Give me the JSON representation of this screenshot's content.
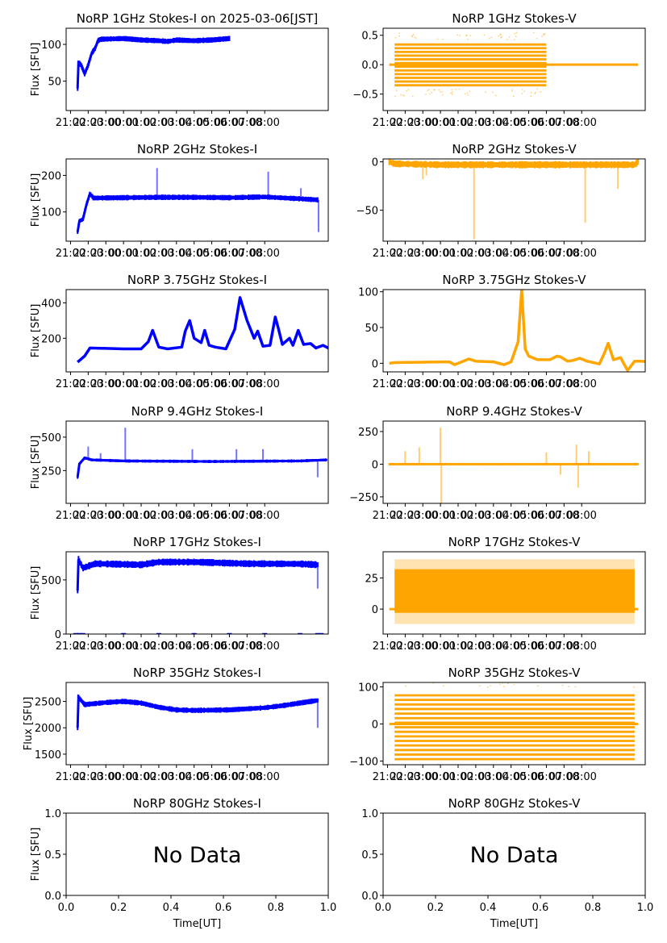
{
  "figure": {
    "x_tick_labels": [
      "21:00",
      "22:00",
      "23:00",
      "00:00",
      "01:00",
      "02:00",
      "03:00",
      "04:00",
      "05:00",
      "06:00",
      "07:00",
      "08:00"
    ],
    "ylabel": "Flux [SFU]",
    "xlabel_empty": "Time[UT]",
    "no_data_text": "No Data",
    "empty_ticks": [
      "0.0",
      "0.2",
      "0.4",
      "0.6",
      "0.8",
      "1.0"
    ],
    "empty_yticks": [
      "0.0",
      "0.5",
      "1.0"
    ],
    "colors": {
      "stokes_i": "#0000ff",
      "stokes_v": "#ffa500"
    }
  },
  "chart_data": [
    {
      "id": "1i",
      "type": "scatter",
      "title": "NoRP 1GHz Stokes-I on 2025-03-06[JST]",
      "ylabel": "Flux [SFU]",
      "ylim": [
        10,
        122
      ],
      "yticks": [
        50,
        100
      ],
      "xlim_hours": [
        -3.25,
        11.6
      ],
      "data_end_hours": 6.0,
      "points": [
        [
          -2.6,
          40
        ],
        [
          -2.55,
          75
        ],
        [
          -2.4,
          72
        ],
        [
          -2.2,
          60
        ],
        [
          -2.0,
          72
        ],
        [
          -1.8,
          88
        ],
        [
          -1.6,
          95
        ],
        [
          -1.45,
          105
        ],
        [
          -1.3,
          107
        ],
        [
          0,
          108
        ],
        [
          1,
          106
        ],
        [
          2,
          105
        ],
        [
          2.5,
          104
        ],
        [
          3,
          106
        ],
        [
          4,
          105
        ],
        [
          5,
          106
        ],
        [
          6,
          108
        ]
      ],
      "noise": 2.5
    },
    {
      "id": "1v",
      "type": "scatter",
      "title": "NoRP 1GHz Stokes-V",
      "ylabel": "",
      "ylim": [
        -0.78,
        0.62
      ],
      "yticks": [
        -0.5,
        0.0,
        0.5
      ],
      "ytick_labels": [
        "−0.5",
        "0.0",
        "0.5"
      ],
      "xlim_hours": [
        -3.25,
        11.6
      ],
      "banded": {
        "start": -2.6,
        "end": 6.0,
        "min": -0.35,
        "max": 0.36,
        "step": 0.063,
        "baseline_start": -2.9,
        "baseline_end": 11.2
      }
    },
    {
      "id": "2i",
      "type": "scatter",
      "title": "NoRP 2GHz Stokes-I",
      "ylabel": "Flux [SFU]",
      "ylim": [
        20,
        245
      ],
      "yticks": [
        100,
        200
      ],
      "xlim_hours": [
        -3.25,
        11.6
      ],
      "points": [
        [
          -2.6,
          45
        ],
        [
          -2.5,
          75
        ],
        [
          -2.3,
          80
        ],
        [
          -2.1,
          120
        ],
        [
          -1.9,
          150
        ],
        [
          -1.7,
          138
        ],
        [
          0,
          139
        ],
        [
          2,
          140
        ],
        [
          4,
          140
        ],
        [
          6,
          139
        ],
        [
          8,
          141
        ],
        [
          10,
          136
        ],
        [
          11,
          133
        ]
      ],
      "noise": 5,
      "spikes": [
        [
          1.9,
          220
        ],
        [
          8.2,
          210
        ],
        [
          10.05,
          165
        ],
        [
          11.05,
          45
        ]
      ]
    },
    {
      "id": "2v",
      "type": "scatter",
      "title": "NoRP 2GHz Stokes-V",
      "ylabel": "",
      "ylim": [
        -82,
        3
      ],
      "yticks": [
        -50,
        0
      ],
      "ytick_labels": [
        "−50",
        "0"
      ],
      "xlim_hours": [
        -3.25,
        11.6
      ],
      "points": [
        [
          -2.9,
          0
        ],
        [
          -2.6,
          -2
        ],
        [
          0,
          -3
        ],
        [
          5,
          -3
        ],
        [
          11,
          -3
        ],
        [
          11.2,
          0
        ]
      ],
      "noise": 2.5,
      "spikes": [
        [
          -1.0,
          -18
        ],
        [
          -0.8,
          -14
        ],
        [
          1.9,
          -80
        ],
        [
          8.2,
          -63
        ],
        [
          10.05,
          -28
        ]
      ]
    },
    {
      "id": "3i",
      "type": "line",
      "title": "NoRP 3.75GHz Stokes-I",
      "ylabel": "Flux [SFU]",
      "ylim": [
        10,
        475
      ],
      "yticks": [
        200,
        400
      ],
      "xlim_hours": [
        -3.25,
        11.6
      ],
      "points": [
        [
          -2.6,
          65
        ],
        [
          -2.2,
          100
        ],
        [
          -1.9,
          145
        ],
        [
          0,
          140
        ],
        [
          1.0,
          140
        ],
        [
          1.4,
          180
        ],
        [
          1.65,
          245
        ],
        [
          2.0,
          150
        ],
        [
          2.5,
          140
        ],
        [
          3.3,
          150
        ],
        [
          3.5,
          240
        ],
        [
          3.75,
          300
        ],
        [
          4.0,
          200
        ],
        [
          4.4,
          175
        ],
        [
          4.6,
          245
        ],
        [
          4.85,
          160
        ],
        [
          5.2,
          150
        ],
        [
          5.8,
          140
        ],
        [
          6.3,
          250
        ],
        [
          6.6,
          430
        ],
        [
          7.0,
          300
        ],
        [
          7.4,
          200
        ],
        [
          7.6,
          240
        ],
        [
          7.9,
          155
        ],
        [
          8.3,
          160
        ],
        [
          8.6,
          320
        ],
        [
          8.75,
          265
        ],
        [
          9.0,
          165
        ],
        [
          9.4,
          200
        ],
        [
          9.6,
          160
        ],
        [
          9.9,
          245
        ],
        [
          10.2,
          165
        ],
        [
          10.6,
          170
        ],
        [
          10.9,
          145
        ],
        [
          11.3,
          160
        ],
        [
          11.6,
          145
        ],
        [
          12.1,
          140
        ]
      ],
      "spikes": [
        [
          12.1,
          290
        ]
      ]
    },
    {
      "id": "3v",
      "type": "line",
      "title": "NoRP 3.75GHz Stokes-V",
      "ylabel": "",
      "ylim": [
        -12,
        103
      ],
      "yticks": [
        0,
        50,
        100
      ],
      "xlim_hours": [
        -3.25,
        11.6
      ],
      "points": [
        [
          -2.9,
          0
        ],
        [
          -2.6,
          1
        ],
        [
          0,
          2
        ],
        [
          0.5,
          2
        ],
        [
          0.8,
          -2
        ],
        [
          1.2,
          2
        ],
        [
          1.6,
          6
        ],
        [
          2.0,
          3
        ],
        [
          3.0,
          2
        ],
        [
          3.6,
          -2
        ],
        [
          4.0,
          2
        ],
        [
          4.4,
          30
        ],
        [
          4.6,
          102
        ],
        [
          4.8,
          20
        ],
        [
          5.0,
          10
        ],
        [
          5.5,
          5
        ],
        [
          6.2,
          5
        ],
        [
          6.6,
          10
        ],
        [
          6.8,
          9
        ],
        [
          7.2,
          3
        ],
        [
          7.5,
          4
        ],
        [
          7.9,
          7
        ],
        [
          8.3,
          3
        ],
        [
          9.0,
          -1
        ],
        [
          9.3,
          15
        ],
        [
          9.5,
          28
        ],
        [
          9.8,
          5
        ],
        [
          10.2,
          8
        ],
        [
          10.6,
          -10
        ],
        [
          11.0,
          3
        ],
        [
          11.3,
          3
        ],
        [
          11.9,
          2
        ],
        [
          12.1,
          0
        ]
      ],
      "spikes": [
        [
          12.1,
          97
        ],
        [
          12.0,
          22
        ]
      ]
    },
    {
      "id": "9i",
      "type": "scatter",
      "title": "NoRP 9.4GHz Stokes-I",
      "ylabel": "Flux [SFU]",
      "ylim": [
        5,
        620
      ],
      "yticks": [
        250,
        500
      ],
      "xlim_hours": [
        -3.25,
        11.6
      ],
      "points": [
        [
          -2.6,
          200
        ],
        [
          -2.5,
          300
        ],
        [
          -2.2,
          345
        ],
        [
          -1.8,
          330
        ],
        [
          0,
          322
        ],
        [
          5,
          318
        ],
        [
          10,
          322
        ],
        [
          11.5,
          330
        ]
      ],
      "noise": 8,
      "spikes": [
        [
          -2.0,
          430
        ],
        [
          0.1,
          570
        ],
        [
          -1.3,
          380
        ],
        [
          3.9,
          410
        ],
        [
          6.4,
          410
        ],
        [
          7.9,
          410
        ],
        [
          11.0,
          200
        ]
      ]
    },
    {
      "id": "9v",
      "type": "scatter",
      "title": "NoRP 9.4GHz Stokes-V",
      "ylabel": "",
      "ylim": [
        -300,
        330
      ],
      "yticks": [
        -250,
        0,
        250
      ],
      "ytick_labels": [
        "−250",
        "0",
        "250"
      ],
      "xlim_hours": [
        -3.25,
        11.6
      ],
      "points": [
        [
          -2.9,
          0
        ],
        [
          11.2,
          0
        ]
      ],
      "noise": 6,
      "spikes": [
        [
          -2.0,
          100
        ],
        [
          -1.2,
          130
        ],
        [
          0.0,
          280
        ],
        [
          0.05,
          -300
        ],
        [
          6.0,
          90
        ],
        [
          6.8,
          -80
        ],
        [
          7.7,
          150
        ],
        [
          7.8,
          -180
        ],
        [
          8.4,
          100
        ]
      ]
    },
    {
      "id": "17i",
      "type": "scatter",
      "title": "NoRP 17GHz Stokes-I",
      "ylabel": "Flux [SFU]",
      "ylim": [
        0,
        760
      ],
      "yticks": [
        0,
        500
      ],
      "xlim_hours": [
        -3.25,
        11.6
      ],
      "points": [
        [
          -2.6,
          400
        ],
        [
          -2.55,
          690
        ],
        [
          -2.3,
          610
        ],
        [
          -1.6,
          650
        ],
        [
          1,
          640
        ],
        [
          2,
          665
        ],
        [
          4,
          665
        ],
        [
          7,
          650
        ],
        [
          10,
          648
        ],
        [
          11,
          640
        ]
      ],
      "noise": 22,
      "spikes": [
        [
          11.0,
          420
        ]
      ],
      "zero_markers": [
        -2.7,
        -2.5,
        -2.3,
        0,
        2,
        4,
        6,
        8,
        10,
        11.0,
        11.2
      ]
    },
    {
      "id": "17v",
      "type": "scatter",
      "title": "NoRP 17GHz Stokes-V",
      "ylabel": "",
      "ylim": [
        -20,
        46
      ],
      "yticks": [
        0,
        25
      ],
      "xlim_hours": [
        -3.25,
        11.6
      ],
      "band": {
        "start": -2.6,
        "end": 11.0,
        "min": -3,
        "max": 32,
        "outer_min": -12,
        "outer_max": 40,
        "baseline_start": -2.9,
        "baseline_end": 11.2
      }
    },
    {
      "id": "35i",
      "type": "scatter",
      "title": "NoRP 35GHz Stokes-I",
      "ylabel": "Flux [SFU]",
      "ylim": [
        1300,
        2860
      ],
      "yticks": [
        1500,
        2000,
        2500
      ],
      "xlim_hours": [
        -3.25,
        11.6
      ],
      "points": [
        [
          -2.6,
          2000
        ],
        [
          -2.55,
          2580
        ],
        [
          -2.2,
          2440
        ],
        [
          -1,
          2480
        ],
        [
          0,
          2500
        ],
        [
          1,
          2470
        ],
        [
          2,
          2390
        ],
        [
          3,
          2340
        ],
        [
          4,
          2330
        ],
        [
          6,
          2340
        ],
        [
          8,
          2380
        ],
        [
          9,
          2420
        ],
        [
          10,
          2470
        ],
        [
          11,
          2520
        ]
      ],
      "noise": 35,
      "spikes": [
        [
          11.0,
          2000
        ]
      ]
    },
    {
      "id": "35v",
      "type": "scatter",
      "title": "NoRP 35GHz Stokes-V",
      "ylabel": "",
      "ylim": [
        -110,
        112
      ],
      "yticks": [
        -100,
        0,
        100
      ],
      "ytick_labels": [
        "−100",
        "0",
        "100"
      ],
      "xlim_hours": [
        -3.25,
        11.6
      ],
      "banded": {
        "start": -2.6,
        "end": 11.0,
        "min": -95,
        "max": 87,
        "step": 12.3,
        "baseline_start": -2.9,
        "baseline_end": 11.2
      }
    },
    {
      "id": "80i",
      "type": "empty",
      "title": "NoRP 80GHz Stokes-I",
      "ylabel": "Flux [SFU]",
      "xlabel": "Time[UT]",
      "xlim": [
        0,
        1
      ],
      "ylim": [
        0,
        1
      ],
      "annotation": "No Data"
    },
    {
      "id": "80v",
      "type": "empty",
      "title": "NoRP 80GHz Stokes-V",
      "ylabel": "",
      "xlabel": "Time[UT]",
      "xlim": [
        0,
        1
      ],
      "ylim": [
        0,
        1
      ],
      "annotation": "No Data"
    }
  ]
}
